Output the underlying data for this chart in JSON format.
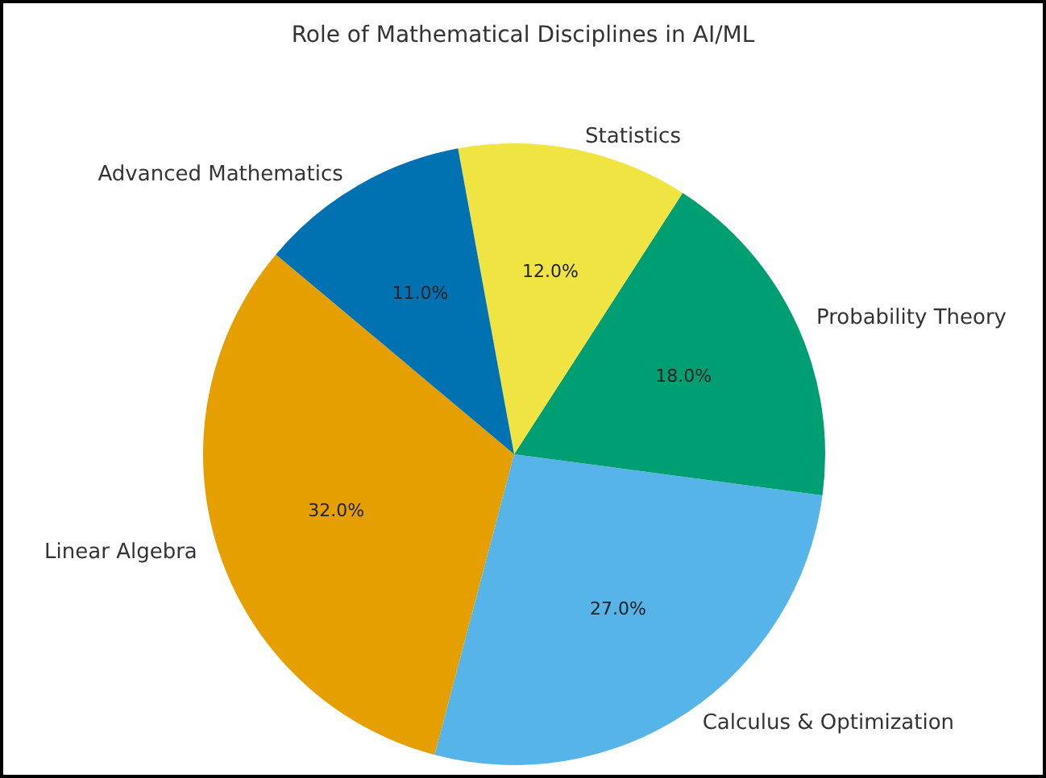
{
  "chart_data": {
    "type": "pie",
    "title": "Role of Mathematical Disciplines in AI/ML",
    "categories": [
      "Linear Algebra",
      "Calculus & Optimization",
      "Probability Theory",
      "Statistics",
      "Advanced Mathematics"
    ],
    "values": [
      32,
      27,
      18,
      12,
      11
    ],
    "colors": [
      "#e69f00",
      "#56b4e9",
      "#009e73",
      "#f0e442",
      "#0072b2"
    ],
    "value_labels": [
      "32.0%",
      "27.0%",
      "18.0%",
      "12.0%",
      "11.0%"
    ],
    "legend": false
  }
}
